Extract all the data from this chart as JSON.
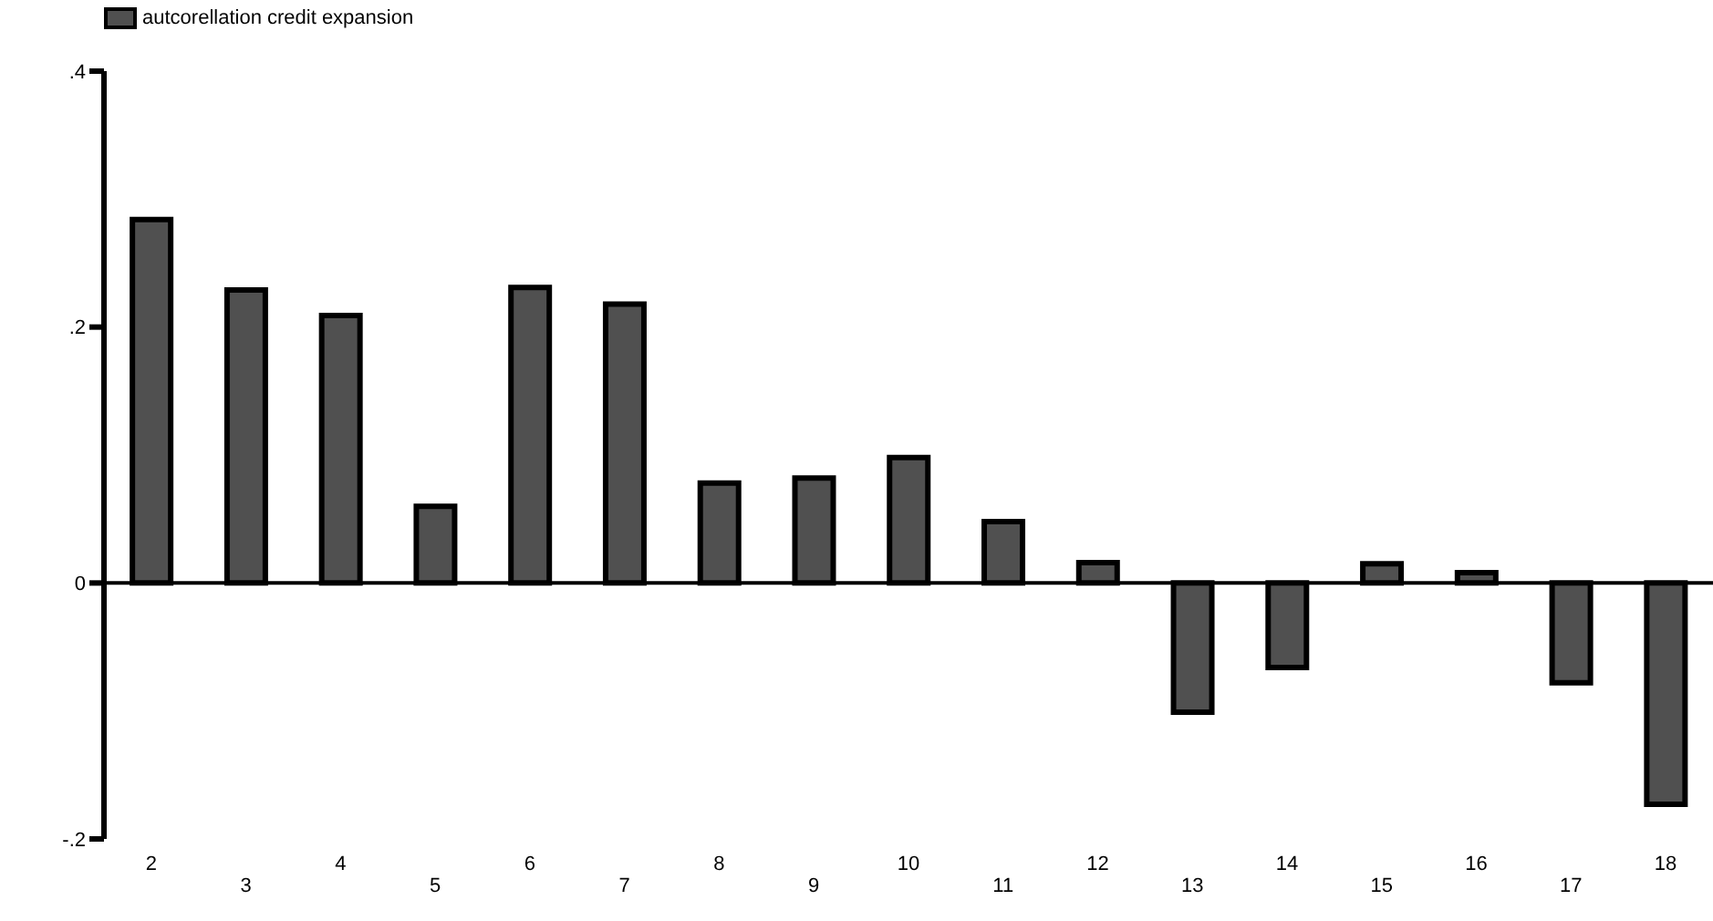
{
  "chart_data": {
    "type": "bar",
    "categories": [
      "2",
      "3",
      "4",
      "5",
      "6",
      "7",
      "8",
      "9",
      "10",
      "11",
      "12",
      "13",
      "14",
      "15",
      "16",
      "17",
      "18"
    ],
    "series": [
      {
        "name": "autcorellation credit expansion",
        "color": "#505050",
        "values": [
          0.284,
          0.229,
          0.209,
          0.06,
          0.231,
          0.218,
          0.078,
          0.082,
          0.098,
          0.048,
          0.016,
          -0.101,
          -0.066,
          0.015,
          0.008,
          -0.078,
          -0.173
        ]
      }
    ],
    "ylim": [
      -0.2,
      0.4
    ],
    "yticks": [
      {
        "value": -0.2,
        "label": "-.2"
      },
      {
        "value": 0,
        "label": "0"
      },
      {
        "value": 0.2,
        "label": ".2"
      },
      {
        "value": 0.4,
        "label": ".4"
      }
    ],
    "ref_lines": [
      {
        "axis": "y",
        "value": 0,
        "color": "#000000"
      }
    ],
    "grid": false,
    "legend": "top left"
  }
}
